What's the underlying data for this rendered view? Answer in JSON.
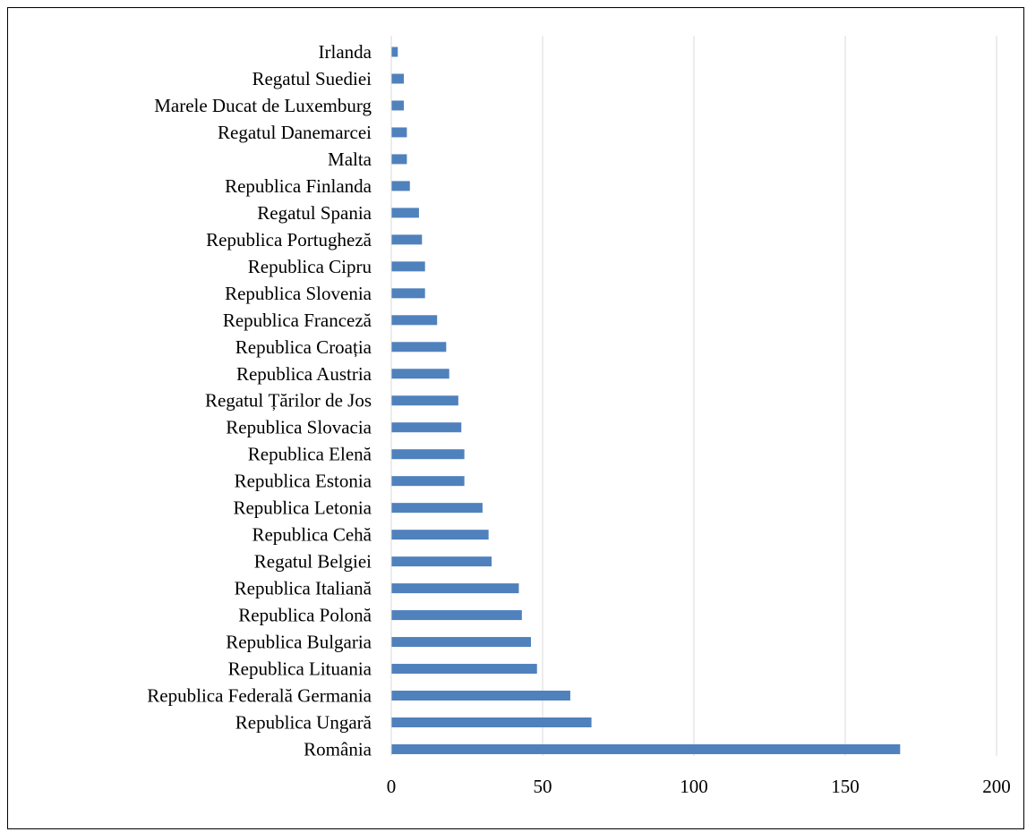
{
  "chart_data": {
    "type": "bar",
    "orientation": "horizontal",
    "title": "",
    "xlabel": "",
    "ylabel": "",
    "categories": [
      "Irlanda",
      "Regatul Suediei",
      "Marele Ducat de Luxemburg",
      "Regatul Danemarcei",
      "Malta",
      "Republica Finlanda",
      "Regatul Spania",
      "Republica Portugheză",
      "Republica Cipru",
      "Republica Slovenia",
      "Republica Franceză",
      "Republica Croația",
      "Republica Austria",
      "Regatul Țărilor de Jos",
      "Republica Slovacia",
      "Republica Elenă",
      "Republica Estonia",
      "Republica Letonia",
      "Republica Cehă",
      "Regatul Belgiei",
      "Republica Italiană",
      "Republica Polonă",
      "Republica Bulgaria",
      "Republica Lituania",
      "Republica Federală Germania",
      "Republica Ungară",
      "România"
    ],
    "values": [
      2,
      4,
      4,
      5,
      5,
      6,
      9,
      10,
      11,
      11,
      15,
      18,
      19,
      22,
      23,
      24,
      24,
      30,
      32,
      33,
      42,
      43,
      46,
      48,
      59,
      66,
      168
    ],
    "xlim": [
      0,
      200
    ],
    "xticks": [
      0,
      50,
      100,
      150,
      200
    ],
    "xtick_labels": [
      "0",
      "50",
      "100",
      "150",
      "200"
    ],
    "grid": "vertical",
    "legend": "none",
    "bar_color": "#4f81bd",
    "grid_color": "#d9d9d9"
  }
}
